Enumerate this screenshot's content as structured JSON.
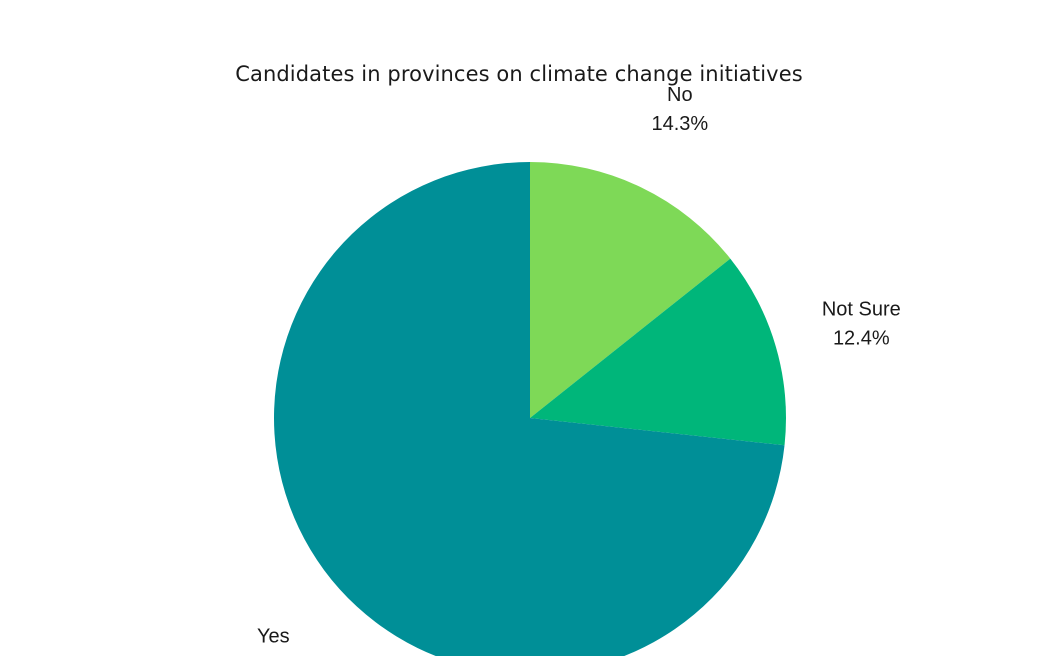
{
  "chart_data": {
    "type": "pie",
    "title": "Candidates in provinces on climate change initiatives",
    "slices": [
      {
        "label": "No",
        "value": 14.3,
        "value_label": "14.3%",
        "color": "#7ed957"
      },
      {
        "label": "Not Sure",
        "value": 12.4,
        "value_label": "12.4%",
        "color": "#00b67a"
      },
      {
        "label": "Yes",
        "value": 73.3,
        "value_label": "73.3%",
        "color": "#008f97"
      }
    ],
    "start_angle": "12 o'clock",
    "direction": "clockwise"
  }
}
